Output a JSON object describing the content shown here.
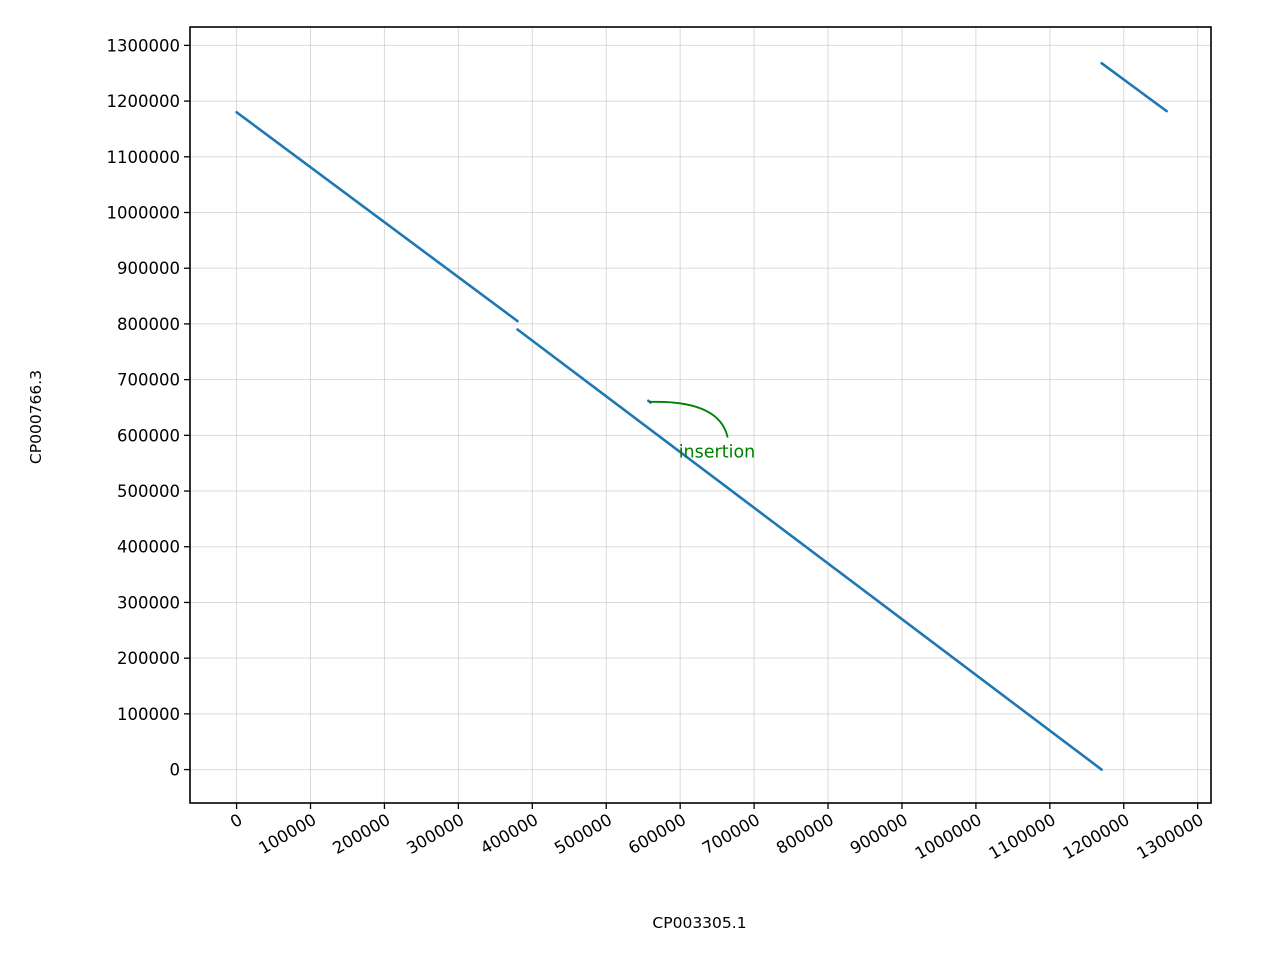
{
  "chart_data": {
    "type": "line",
    "title": "",
    "xlabel": "CP003305.1",
    "ylabel": "CP000766.3",
    "xlim": [
      -63000,
      1318000
    ],
    "ylim": [
      -60000,
      1333000
    ],
    "xticks": [
      0,
      100000,
      200000,
      300000,
      400000,
      500000,
      600000,
      700000,
      800000,
      900000,
      1000000,
      1100000,
      1200000,
      1300000
    ],
    "yticks": [
      0,
      100000,
      200000,
      300000,
      400000,
      500000,
      600000,
      700000,
      800000,
      900000,
      1000000,
      1100000,
      1200000,
      1300000
    ],
    "grid": true,
    "series_color": "#1f77b4",
    "segments": [
      {
        "x": [
          0,
          380000
        ],
        "y": [
          1180000,
          805000
        ]
      },
      {
        "x": [
          380000,
          1170000
        ],
        "y": [
          790000,
          0
        ]
      },
      {
        "x": [
          1170000,
          1258000
        ],
        "y": [
          1268000,
          1182000
        ]
      },
      {
        "x": [
          557000,
          560000
        ],
        "y": [
          662000,
          659000
        ]
      }
    ],
    "annotations": [
      {
        "text": "insertion",
        "color": "#008000",
        "point": [
          558000,
          660000
        ],
        "text_pos": [
          598000,
          560000
        ]
      }
    ]
  }
}
